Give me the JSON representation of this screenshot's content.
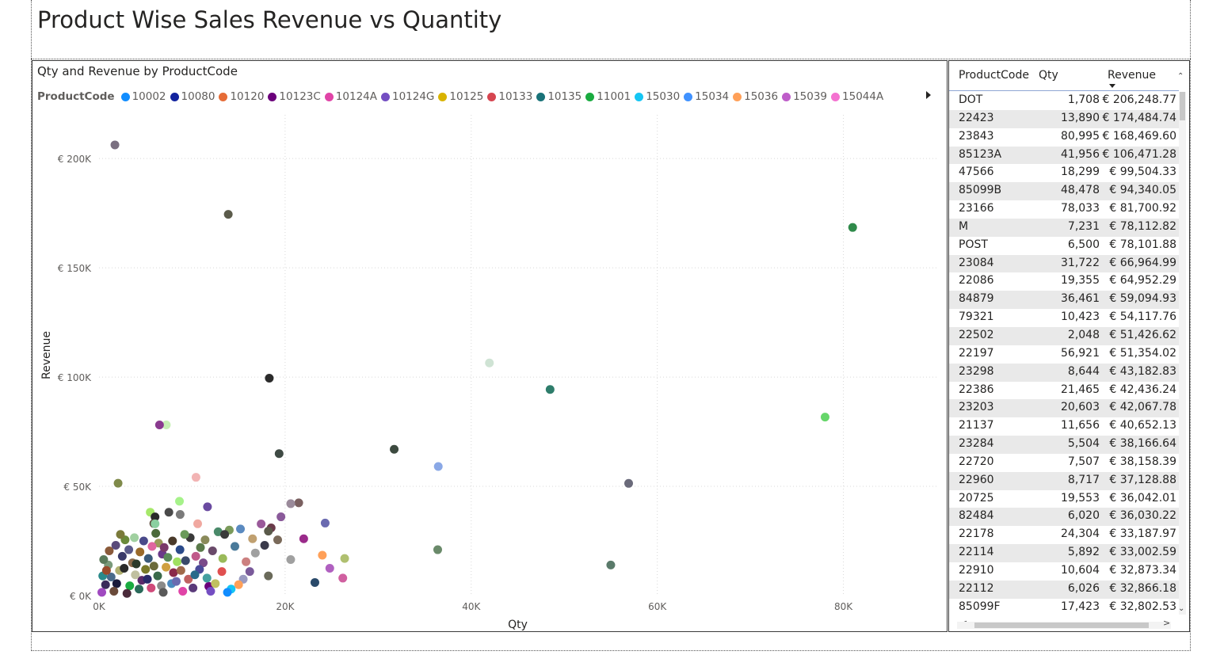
{
  "page": {
    "title": "Product Wise Sales Revenue vs Quantity"
  },
  "chart_data": {
    "type": "scatter",
    "title": "Qty and Revenue by ProductCode",
    "xlabel": "Qty",
    "ylabel": "Revenue",
    "xlim": [
      0,
      90000
    ],
    "ylim": [
      0,
      220000
    ],
    "x_ticks": [
      0,
      20000,
      40000,
      60000,
      80000
    ],
    "x_tick_labels": [
      "0K",
      "20K",
      "40K",
      "60K",
      "80K"
    ],
    "y_ticks": [
      0,
      50000,
      100000,
      150000,
      200000
    ],
    "y_tick_labels": [
      "€ 0K",
      "€ 50K",
      "€ 100K",
      "€ 150K",
      "€ 200K"
    ],
    "grid": true,
    "legend_title": "ProductCode",
    "legend_placement": "top",
    "legend": [
      {
        "name": "10002",
        "color": "#118DFF"
      },
      {
        "name": "10080",
        "color": "#12239E"
      },
      {
        "name": "10120",
        "color": "#E66C37"
      },
      {
        "name": "10123C",
        "color": "#6B007B"
      },
      {
        "name": "10124A",
        "color": "#E044A7"
      },
      {
        "name": "10124G",
        "color": "#744EC2"
      },
      {
        "name": "10125",
        "color": "#D9B300"
      },
      {
        "name": "10133",
        "color": "#D64550"
      },
      {
        "name": "10135",
        "color": "#197278"
      },
      {
        "name": "11001",
        "color": "#1AAB40"
      },
      {
        "name": "15030",
        "color": "#15C6F4"
      },
      {
        "name": "15034",
        "color": "#4092FF"
      },
      {
        "name": "15036",
        "color": "#FFA058"
      },
      {
        "name": "15039",
        "color": "#BE5DC9"
      },
      {
        "name": "15044A",
        "color": "#F472D0"
      }
    ],
    "points": [
      {
        "x": 1708,
        "y": 206248.77,
        "color": "#7a6f80"
      },
      {
        "x": 13890,
        "y": 174484.74,
        "color": "#5b5b4b"
      },
      {
        "x": 80995,
        "y": 168469.6,
        "color": "#2f8a4a"
      },
      {
        "x": 41956,
        "y": 106471.28,
        "color": "#cfe3d4"
      },
      {
        "x": 18299,
        "y": 99504.33,
        "color": "#2b2b2b"
      },
      {
        "x": 48478,
        "y": 94340.05,
        "color": "#2e7d6b"
      },
      {
        "x": 78033,
        "y": 81700.92,
        "color": "#66d66a"
      },
      {
        "x": 7231,
        "y": 78112.82,
        "color": "#c7f0b5"
      },
      {
        "x": 6500,
        "y": 78101.88,
        "color": "#8a3b8f"
      },
      {
        "x": 31722,
        "y": 66964.99,
        "color": "#3c4a3f"
      },
      {
        "x": 19355,
        "y": 64952.29,
        "color": "#3f4a44"
      },
      {
        "x": 36461,
        "y": 59094.93,
        "color": "#8aa8e6"
      },
      {
        "x": 10423,
        "y": 54117.76,
        "color": "#f2b4b4"
      },
      {
        "x": 2048,
        "y": 51426.62,
        "color": "#7f8a4a"
      },
      {
        "x": 56921,
        "y": 51354.02,
        "color": "#6a6a7a"
      },
      {
        "x": 8644,
        "y": 43182.83,
        "color": "#a6f28a"
      },
      {
        "x": 21465,
        "y": 42436.24,
        "color": "#7a6060"
      },
      {
        "x": 20603,
        "y": 42067.78,
        "color": "#9a8a9a"
      },
      {
        "x": 11656,
        "y": 40652.13,
        "color": "#6a4aa0"
      },
      {
        "x": 5504,
        "y": 38166.64,
        "color": "#a6e86a"
      },
      {
        "x": 7507,
        "y": 38158.39,
        "color": "#4a4a4a"
      },
      {
        "x": 8717,
        "y": 37128.88,
        "color": "#7a7a7a"
      },
      {
        "x": 19553,
        "y": 36042.01,
        "color": "#8a5a9a"
      },
      {
        "x": 6020,
        "y": 36030.22,
        "color": "#2a2a2a"
      },
      {
        "x": 24304,
        "y": 33187.97,
        "color": "#6a6ab0"
      },
      {
        "x": 5892,
        "y": 33002.59,
        "color": "#5a4a3a"
      },
      {
        "x": 10604,
        "y": 32873.34,
        "color": "#f0a8a0"
      },
      {
        "x": 6026,
        "y": 32866.18,
        "color": "#8ad0a0"
      },
      {
        "x": 17423,
        "y": 32802.53,
        "color": "#9a5a9a"
      },
      {
        "x": 18500,
        "y": 31000,
        "color": "#6a3a4a"
      },
      {
        "x": 15200,
        "y": 30500,
        "color": "#5a8ac0"
      },
      {
        "x": 14000,
        "y": 30000,
        "color": "#7a9a5a"
      },
      {
        "x": 12800,
        "y": 29200,
        "color": "#4a8a6a"
      },
      {
        "x": 13500,
        "y": 28000,
        "color": "#3a3a3a"
      },
      {
        "x": 18200,
        "y": 29500,
        "color": "#5a5a4a"
      },
      {
        "x": 16500,
        "y": 26000,
        "color": "#c0a070"
      },
      {
        "x": 19200,
        "y": 25500,
        "color": "#7a6a5a"
      },
      {
        "x": 22000,
        "y": 26000,
        "color": "#9a2a8a"
      },
      {
        "x": 17800,
        "y": 23000,
        "color": "#3a3a4a"
      },
      {
        "x": 16800,
        "y": 19500,
        "color": "#a0a0a0"
      },
      {
        "x": 24000,
        "y": 18500,
        "color": "#ffa058"
      },
      {
        "x": 26400,
        "y": 17000,
        "color": "#b0c070"
      },
      {
        "x": 36400,
        "y": 21000,
        "color": "#6a8a6a"
      },
      {
        "x": 15800,
        "y": 15500,
        "color": "#cc8080"
      },
      {
        "x": 16200,
        "y": 11000,
        "color": "#7a5a9a"
      },
      {
        "x": 18200,
        "y": 9000,
        "color": "#6a6a5a"
      },
      {
        "x": 24800,
        "y": 12500,
        "color": "#b060c0"
      },
      {
        "x": 26200,
        "y": 8000,
        "color": "#d060a0"
      },
      {
        "x": 23200,
        "y": 6000,
        "color": "#2a4a6a"
      },
      {
        "x": 55000,
        "y": 14000,
        "color": "#5a7a6a"
      },
      {
        "x": 15500,
        "y": 7500,
        "color": "#9a9ac0"
      },
      {
        "x": 15000,
        "y": 5000,
        "color": "#ffa058"
      },
      {
        "x": 14200,
        "y": 3000,
        "color": "#15c6f4"
      },
      {
        "x": 13800,
        "y": 1500,
        "color": "#118dff"
      },
      {
        "x": 11800,
        "y": 4200,
        "color": "#6b007b"
      },
      {
        "x": 12500,
        "y": 5500,
        "color": "#c0c060"
      },
      {
        "x": 13200,
        "y": 11000,
        "color": "#e05050"
      },
      {
        "x": 11600,
        "y": 8000,
        "color": "#44a0a0"
      },
      {
        "x": 11200,
        "y": 15000,
        "color": "#7a4a8a"
      },
      {
        "x": 10800,
        "y": 12000,
        "color": "#4a4a9a"
      },
      {
        "x": 10400,
        "y": 18000,
        "color": "#c05a8a"
      },
      {
        "x": 10900,
        "y": 22000,
        "color": "#5a7a4a"
      },
      {
        "x": 9800,
        "y": 26500,
        "color": "#3a3a3a"
      },
      {
        "x": 9200,
        "y": 28000,
        "color": "#6a9a5a"
      },
      {
        "x": 8700,
        "y": 21000,
        "color": "#2a4a8a"
      },
      {
        "x": 8400,
        "y": 15500,
        "color": "#a0e060"
      },
      {
        "x": 8000,
        "y": 10500,
        "color": "#8a2a4a"
      },
      {
        "x": 7800,
        "y": 5500,
        "color": "#4a8ac0"
      },
      {
        "x": 7200,
        "y": 13000,
        "color": "#d0a040"
      },
      {
        "x": 6800,
        "y": 19000,
        "color": "#6a3a8a"
      },
      {
        "x": 6400,
        "y": 24000,
        "color": "#9a9a5a"
      },
      {
        "x": 6100,
        "y": 28500,
        "color": "#4a6a3a"
      },
      {
        "x": 5700,
        "y": 22500,
        "color": "#e066a0"
      },
      {
        "x": 5300,
        "y": 17000,
        "color": "#3a5a7a"
      },
      {
        "x": 5000,
        "y": 12000,
        "color": "#7a7a2a"
      },
      {
        "x": 4600,
        "y": 7000,
        "color": "#5a2a6a"
      },
      {
        "x": 4300,
        "y": 3000,
        "color": "#2a6a5a"
      },
      {
        "x": 3900,
        "y": 9500,
        "color": "#c0c0a0"
      },
      {
        "x": 3600,
        "y": 15000,
        "color": "#8a6a4a"
      },
      {
        "x": 3200,
        "y": 21000,
        "color": "#5a5a8a"
      },
      {
        "x": 2800,
        "y": 25500,
        "color": "#6a8a3a"
      },
      {
        "x": 2500,
        "y": 18000,
        "color": "#3a3a6a"
      },
      {
        "x": 2200,
        "y": 11500,
        "color": "#b0b070"
      },
      {
        "x": 1900,
        "y": 5500,
        "color": "#1a1a3a"
      },
      {
        "x": 1600,
        "y": 2000,
        "color": "#6a4a3a"
      },
      {
        "x": 1300,
        "y": 8500,
        "color": "#4a6a8a"
      },
      {
        "x": 1000,
        "y": 14000,
        "color": "#7a9a7a"
      },
      {
        "x": 700,
        "y": 5000,
        "color": "#3a2a5a"
      },
      {
        "x": 500,
        "y": 16500,
        "color": "#5a7a5a"
      },
      {
        "x": 300,
        "y": 1500,
        "color": "#a04ac0"
      },
      {
        "x": 400,
        "y": 9000,
        "color": "#2a8a8a"
      },
      {
        "x": 1100,
        "y": 20500,
        "color": "#8a5a3a"
      },
      {
        "x": 1800,
        "y": 23000,
        "color": "#5a4a7a"
      },
      {
        "x": 2700,
        "y": 12500,
        "color": "#2a2a2a"
      },
      {
        "x": 3300,
        "y": 4500,
        "color": "#1aab40"
      },
      {
        "x": 3800,
        "y": 26500,
        "color": "#a0d0a0"
      },
      {
        "x": 4400,
        "y": 20000,
        "color": "#9a6a2a"
      },
      {
        "x": 4800,
        "y": 25000,
        "color": "#4a4a8a"
      },
      {
        "x": 5200,
        "y": 7500,
        "color": "#2a2a6a"
      },
      {
        "x": 5600,
        "y": 3500,
        "color": "#d04a7a"
      },
      {
        "x": 5900,
        "y": 13500,
        "color": "#6a6a3a"
      },
      {
        "x": 6300,
        "y": 9000,
        "color": "#3a6a4a"
      },
      {
        "x": 6700,
        "y": 4500,
        "color": "#8a8a8a"
      },
      {
        "x": 7000,
        "y": 22000,
        "color": "#7a3a6a"
      },
      {
        "x": 7400,
        "y": 17500,
        "color": "#5a8a5a"
      },
      {
        "x": 7900,
        "y": 25000,
        "color": "#4a3a2a"
      },
      {
        "x": 8300,
        "y": 6500,
        "color": "#6a6ab0"
      },
      {
        "x": 8800,
        "y": 11500,
        "color": "#a06a4a"
      },
      {
        "x": 9300,
        "y": 16000,
        "color": "#3a4a6a"
      },
      {
        "x": 9600,
        "y": 7500,
        "color": "#c06060"
      },
      {
        "x": 10100,
        "y": 3500,
        "color": "#5a3a7a"
      },
      {
        "x": 10300,
        "y": 9500,
        "color": "#2a6a8a"
      },
      {
        "x": 2300,
        "y": 28000,
        "color": "#7a7a3a"
      },
      {
        "x": 3000,
        "y": 1000,
        "color": "#4a2a3a"
      },
      {
        "x": 9000,
        "y": 2000,
        "color": "#e044a7"
      },
      {
        "x": 12000,
        "y": 2000,
        "color": "#744ec2"
      },
      {
        "x": 800,
        "y": 11500,
        "color": "#9a4a2a"
      },
      {
        "x": 4000,
        "y": 14500,
        "color": "#2a3a2a"
      },
      {
        "x": 6900,
        "y": 1500,
        "color": "#5a5a5a"
      },
      {
        "x": 11400,
        "y": 25500,
        "color": "#8a8a5a"
      },
      {
        "x": 12200,
        "y": 20500,
        "color": "#6a4a6a"
      },
      {
        "x": 14600,
        "y": 22500,
        "color": "#4a7a9a"
      },
      {
        "x": 13300,
        "y": 17000,
        "color": "#9aba5a"
      },
      {
        "x": 20600,
        "y": 16500,
        "color": "#a0a0a0"
      }
    ]
  },
  "table": {
    "headers": {
      "code": "ProductCode",
      "qty": "Qty",
      "revenue": "Revenue"
    },
    "rows": [
      {
        "code": "DOT",
        "qty": "1,708",
        "revenue": "€ 206,248.77"
      },
      {
        "code": "22423",
        "qty": "13,890",
        "revenue": "€ 174,484.74"
      },
      {
        "code": "23843",
        "qty": "80,995",
        "revenue": "€ 168,469.60"
      },
      {
        "code": "85123A",
        "qty": "41,956",
        "revenue": "€ 106,471.28"
      },
      {
        "code": "47566",
        "qty": "18,299",
        "revenue": "€ 99,504.33"
      },
      {
        "code": "85099B",
        "qty": "48,478",
        "revenue": "€ 94,340.05"
      },
      {
        "code": "23166",
        "qty": "78,033",
        "revenue": "€ 81,700.92"
      },
      {
        "code": "M",
        "qty": "7,231",
        "revenue": "€ 78,112.82"
      },
      {
        "code": "POST",
        "qty": "6,500",
        "revenue": "€ 78,101.88"
      },
      {
        "code": "23084",
        "qty": "31,722",
        "revenue": "€ 66,964.99"
      },
      {
        "code": "22086",
        "qty": "19,355",
        "revenue": "€ 64,952.29"
      },
      {
        "code": "84879",
        "qty": "36,461",
        "revenue": "€ 59,094.93"
      },
      {
        "code": "79321",
        "qty": "10,423",
        "revenue": "€ 54,117.76"
      },
      {
        "code": "22502",
        "qty": "2,048",
        "revenue": "€ 51,426.62"
      },
      {
        "code": "22197",
        "qty": "56,921",
        "revenue": "€ 51,354.02"
      },
      {
        "code": "23298",
        "qty": "8,644",
        "revenue": "€ 43,182.83"
      },
      {
        "code": "22386",
        "qty": "21,465",
        "revenue": "€ 42,436.24"
      },
      {
        "code": "23203",
        "qty": "20,603",
        "revenue": "€ 42,067.78"
      },
      {
        "code": "21137",
        "qty": "11,656",
        "revenue": "€ 40,652.13"
      },
      {
        "code": "23284",
        "qty": "5,504",
        "revenue": "€ 38,166.64"
      },
      {
        "code": "22720",
        "qty": "7,507",
        "revenue": "€ 38,158.39"
      },
      {
        "code": "22960",
        "qty": "8,717",
        "revenue": "€ 37,128.88"
      },
      {
        "code": "20725",
        "qty": "19,553",
        "revenue": "€ 36,042.01"
      },
      {
        "code": "82484",
        "qty": "6,020",
        "revenue": "€ 36,030.22"
      },
      {
        "code": "22178",
        "qty": "24,304",
        "revenue": "€ 33,187.97"
      },
      {
        "code": "22114",
        "qty": "5,892",
        "revenue": "€ 33,002.59"
      },
      {
        "code": "22910",
        "qty": "10,604",
        "revenue": "€ 32,873.34"
      },
      {
        "code": "22112",
        "qty": "6,026",
        "revenue": "€ 32,866.18"
      },
      {
        "code": "85099F",
        "qty": "17,423",
        "revenue": "€ 32,802.53"
      }
    ]
  }
}
